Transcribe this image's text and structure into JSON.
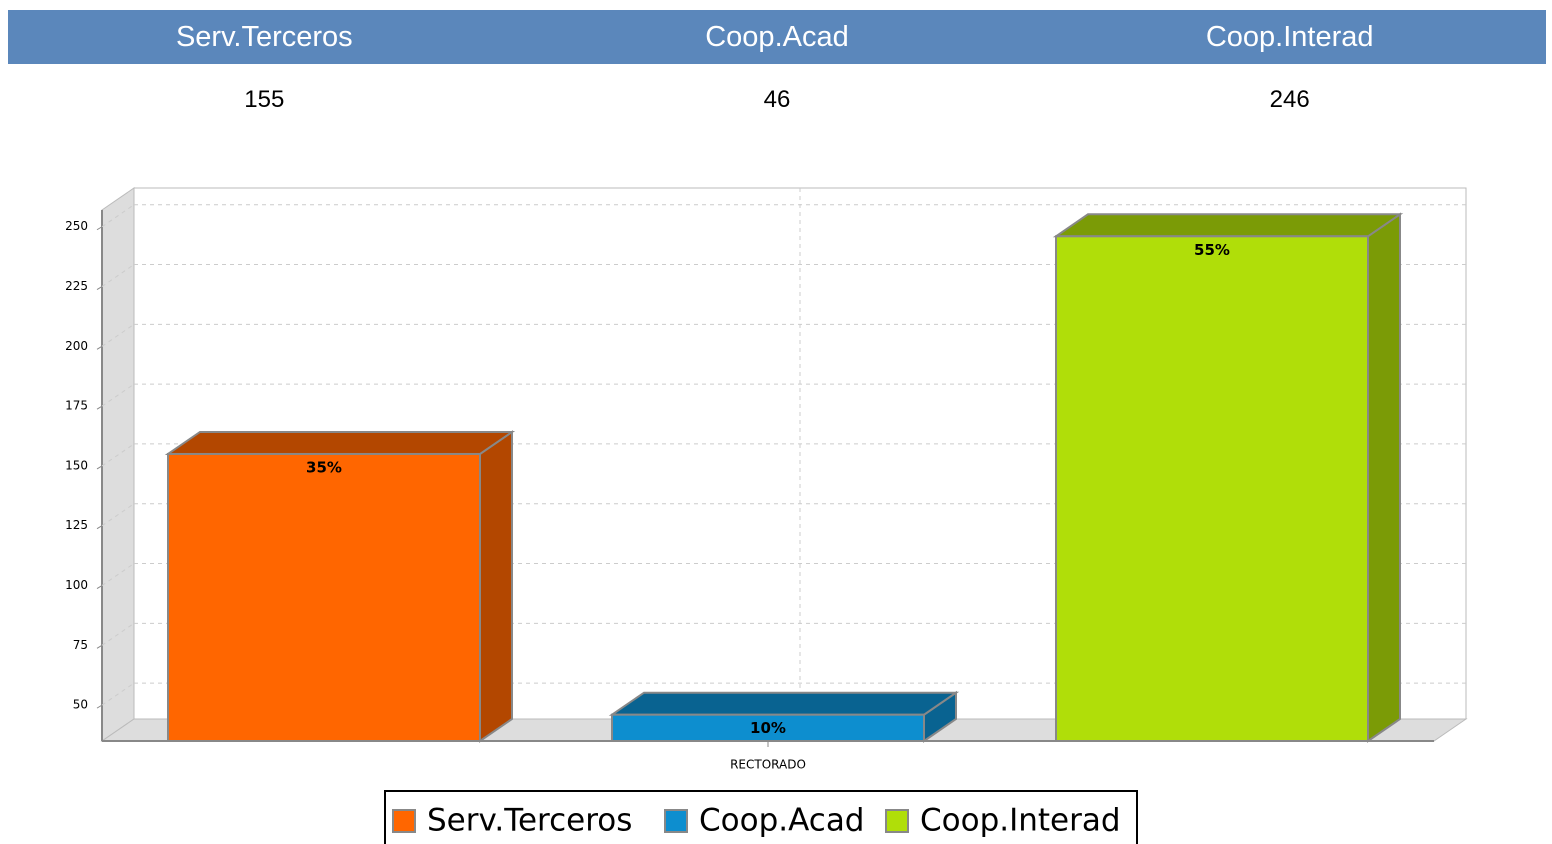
{
  "table": {
    "headers": [
      "Serv.Terceros",
      "Coop.Acad",
      "Coop.Interad"
    ],
    "rows": [
      [
        "155",
        "46",
        "246"
      ]
    ]
  },
  "chart_data": {
    "type": "bar3d",
    "categories": [
      "RECTORADO"
    ],
    "series": [
      {
        "name": "Serv.Terceros",
        "color": "#ff6600",
        "values": [
          155
        ],
        "data_labels": [
          "35%"
        ]
      },
      {
        "name": "Coop.Acad",
        "color": "#0d8ecf",
        "values": [
          46
        ],
        "data_labels": [
          "10%"
        ]
      },
      {
        "name": "Coop.Interad",
        "color": "#b0de09",
        "values": [
          246
        ],
        "data_labels": [
          "55%"
        ]
      }
    ],
    "ylim": [
      35,
      257
    ],
    "yticks": [
      50,
      75,
      100,
      125,
      150,
      175,
      200,
      225,
      250
    ],
    "grid": true,
    "legend": "bottom"
  }
}
